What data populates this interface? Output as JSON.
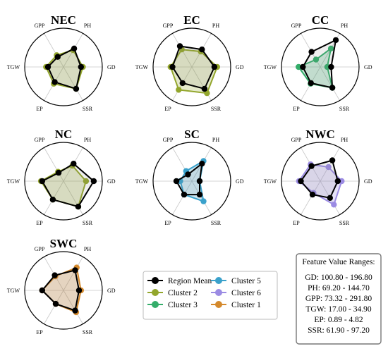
{
  "chart_data": {
    "type": "radar",
    "axes": [
      "GD",
      "PH",
      "GPP",
      "TGW",
      "EP",
      "SSR"
    ],
    "rmax": 1.0,
    "colors": {
      "Region Mean": "#000000",
      "Cluster 1": "#d4892c",
      "Cluster 2": "#93a62c",
      "Cluster 3": "#34ad6a",
      "Cluster 5": "#3aa1cb",
      "Cluster 6": "#9b8be3"
    },
    "charts": [
      {
        "title": "NEC",
        "series": [
          {
            "name": "Region Mean",
            "values": [
              0.45,
              0.55,
              0.3,
              0.4,
              0.45,
              0.65
            ]
          },
          {
            "name": "Cluster 2",
            "values": [
              0.5,
              0.5,
              0.35,
              0.45,
              0.5,
              0.65
            ]
          }
        ]
      },
      {
        "title": "EC",
        "series": [
          {
            "name": "Region Mean",
            "values": [
              0.58,
              0.52,
              0.62,
              0.5,
              0.48,
              0.65
            ]
          },
          {
            "name": "Cluster 2",
            "values": [
              0.65,
              0.46,
              0.52,
              0.55,
              0.68,
              0.78
            ]
          }
        ]
      },
      {
        "title": "CC",
        "series": [
          {
            "name": "Region Mean",
            "values": [
              0.28,
              0.8,
              0.45,
              0.45,
              0.48,
              0.62
            ]
          },
          {
            "name": "Cluster 3",
            "values": [
              0.18,
              0.55,
              0.22,
              0.56,
              0.5,
              0.62
            ]
          }
        ]
      },
      {
        "title": "NC",
        "series": [
          {
            "name": "Region Mean",
            "values": [
              0.78,
              0.52,
              0.25,
              0.55,
              0.55,
              0.76
            ]
          },
          {
            "name": "Cluster 2",
            "values": [
              0.58,
              0.46,
              0.28,
              0.58,
              0.55,
              0.76
            ]
          }
        ]
      },
      {
        "title": "SC",
        "series": [
          {
            "name": "Region Mean",
            "values": [
              0.2,
              0.52,
              0.2,
              0.4,
              0.4,
              0.4
            ]
          },
          {
            "name": "Cluster 5",
            "values": [
              0.2,
              0.6,
              0.3,
              0.3,
              0.4,
              0.6
            ]
          }
        ]
      },
      {
        "title": "NWC",
        "series": [
          {
            "name": "Region Mean",
            "values": [
              0.45,
              0.62,
              0.45,
              0.5,
              0.4,
              0.5
            ]
          },
          {
            "name": "Cluster 6",
            "values": [
              0.55,
              0.42,
              0.5,
              0.55,
              0.35,
              0.7
            ]
          }
        ]
      },
      {
        "title": "SWC",
        "series": [
          {
            "name": "Region Mean",
            "values": [
              0.4,
              0.6,
              0.45,
              0.55,
              0.4,
              0.6
            ]
          },
          {
            "name": "Cluster 1",
            "values": [
              0.45,
              0.68,
              0.42,
              0.55,
              0.4,
              0.65
            ]
          }
        ]
      }
    ],
    "legend": {
      "entries": [
        "Region Mean",
        "Cluster 2",
        "Cluster 3",
        "Cluster 5",
        "Cluster 6",
        "Cluster 1"
      ],
      "placement": "bottom-center"
    },
    "ranges_box": {
      "title": "Feature Value Ranges:",
      "lines": [
        "GD: 100.80 - 196.80",
        "PH: 69.20 - 144.70",
        "GPP: 73.32 - 291.80",
        "TGW: 17.00 - 34.90",
        "EP: 0.89 - 4.82",
        "SSR: 61.90 - 97.20"
      ],
      "placement": "bottom-right"
    }
  }
}
